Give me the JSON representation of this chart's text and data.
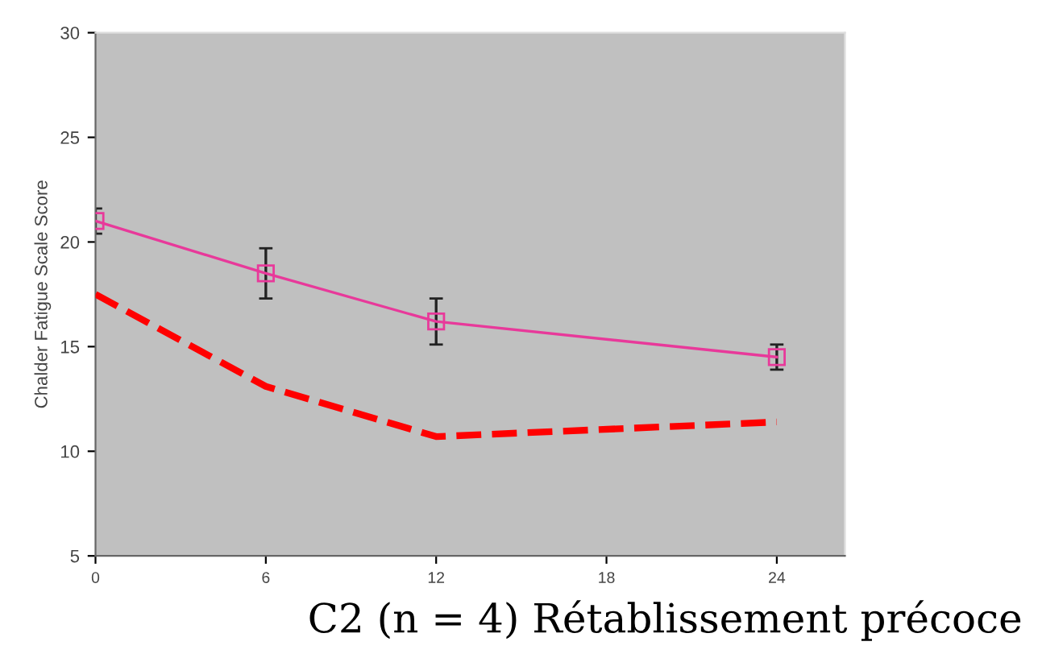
{
  "chart_data": {
    "type": "line",
    "ylabel": "Chalder Fatigue Scale Score",
    "x": [
      0,
      6,
      12,
      18,
      24
    ],
    "series": [
      {
        "color": "#e8399a",
        "values": [
          21.0,
          18.5,
          16.2,
          null,
          14.5
        ],
        "errors": [
          0.6,
          1.2,
          1.1,
          null,
          0.6
        ],
        "marker": "square",
        "line_style": "solid"
      },
      {
        "color": "#ff0000",
        "values": [
          17.5,
          13.1,
          10.7,
          null,
          11.4
        ],
        "marker": "none",
        "line_style": "dashed"
      }
    ],
    "xlim": [
      0,
      26.4
    ],
    "xticks": [
      0,
      6,
      12,
      18,
      24
    ],
    "ylim": [
      5,
      30
    ],
    "yticks": [
      5,
      10,
      15,
      20,
      25,
      30
    ],
    "grid": false,
    "legend": false,
    "annotations": [
      "C2 (n = 4) Rétablissement précoce"
    ]
  }
}
